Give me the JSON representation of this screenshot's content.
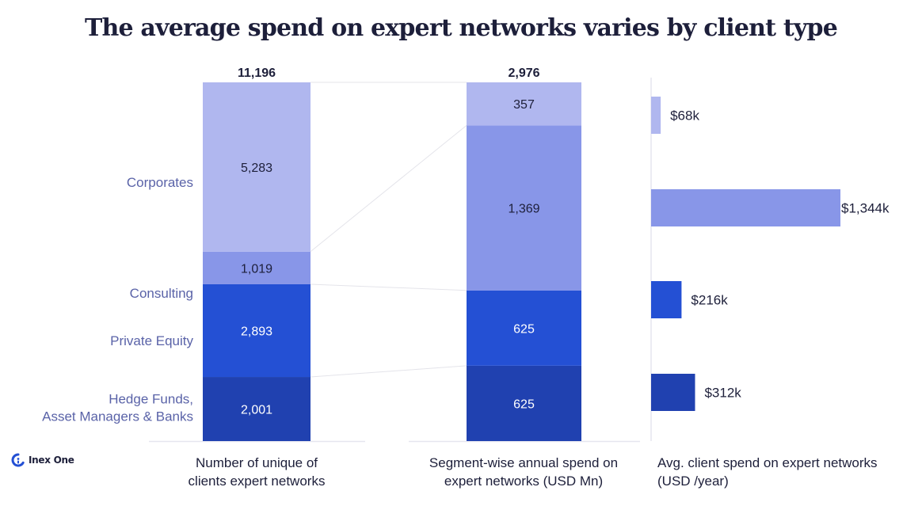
{
  "title": "The average spend on expert networks varies by client type",
  "logo": {
    "icon": "inex-one-logo-icon",
    "text": "Inex One"
  },
  "colors": {
    "Corporates": "#b0b7ef",
    "Consulting": "#8896e8",
    "Private Equity": "#2450d4",
    "Hedge Funds, Asset Managers & Banks": "#2041b0",
    "text_dark": "#1d1f3a",
    "text_category": "#5a63a8",
    "gridline": "#e6e6ef"
  },
  "chart_data": [
    {
      "type": "bar",
      "stacked": true,
      "title": "Number of unique clients of expert networks",
      "xlabel": "Number of unique clients of expert networks",
      "total_label": "11,196",
      "total": 11196,
      "categories": [
        "Hedge Funds, Asset Managers & Banks",
        "Private Equity",
        "Consulting",
        "Corporates"
      ],
      "category_labels": [
        [
          "Hedge Funds,",
          "Asset Managers & Banks"
        ],
        [
          "Private Equity"
        ],
        [
          "Consulting"
        ],
        [
          "Corporates"
        ]
      ],
      "values": [
        2001,
        2893,
        1019,
        5283
      ],
      "value_labels": [
        "2,001",
        "2,893",
        "1,019",
        "5,283"
      ],
      "ylim": [
        0,
        11196
      ],
      "grid": false
    },
    {
      "type": "bar",
      "stacked": true,
      "title": "Segment-wise annual spend on expert networks (USD Mn)",
      "xlabel": "Segment-wise annual spend on expert networks (USD Mn)",
      "total_label": "2,976",
      "total": 2976,
      "categories": [
        "Hedge Funds, Asset Managers & Banks",
        "Private Equity",
        "Consulting",
        "Corporates"
      ],
      "values": [
        625,
        625,
        1369,
        357
      ],
      "value_labels": [
        "625",
        "625",
        "1,369",
        "357"
      ],
      "ylim": [
        0,
        2976
      ],
      "grid": false
    },
    {
      "type": "bar",
      "orientation": "horizontal",
      "title": "Avg. client spend on expert networks (USD /year)",
      "xlabel": "Avg. client spend on expert networks (USD /year)",
      "categories": [
        "Corporates",
        "Consulting",
        "Private Equity",
        "Hedge Funds, Asset Managers & Banks"
      ],
      "values": [
        68,
        1344,
        216,
        312
      ],
      "value_labels": [
        "$68k",
        "$1,344k",
        "$216k",
        "$312k"
      ],
      "units": "USD thousands per year",
      "xlim": [
        0,
        1344
      ],
      "grid": false
    }
  ]
}
